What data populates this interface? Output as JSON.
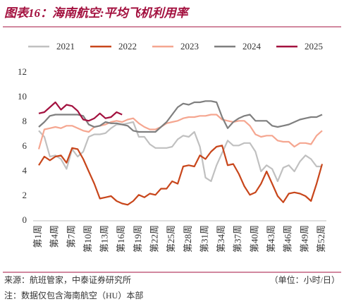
{
  "chart_data": {
    "type": "line",
    "title": "图表16：海南航空:平均飞机利用率",
    "source": "来源：航班管家，中泰证券研究所",
    "unit": "（单位：小时/日）",
    "note": "注：数据仅包含海南航空（HU）本部",
    "categories": [
      "第1周",
      null,
      null,
      "第4周",
      null,
      null,
      "第7周",
      null,
      null,
      "第10周",
      null,
      null,
      "第13周",
      null,
      null,
      "第16周",
      null,
      null,
      "第19周",
      null,
      null,
      "第22周",
      null,
      null,
      "第25周",
      null,
      null,
      "第28周",
      null,
      null,
      "第31周",
      null,
      null,
      "第34周",
      null,
      null,
      "第37周",
      null,
      null,
      "第40周",
      null,
      null,
      "第43周",
      null,
      null,
      "第46周",
      null,
      null,
      "第49周",
      null,
      null,
      "第52周"
    ],
    "ylim": [
      0,
      12
    ],
    "yticks": [
      0,
      2,
      4,
      6,
      8,
      10,
      12
    ],
    "grid": false,
    "legend": "top",
    "series": [
      {
        "name": "2021",
        "color": "#c0c0c0",
        "values": [
          7.3,
          6.8,
          5.2,
          5.3,
          5.0,
          4.2,
          5.8,
          5.2,
          5.6,
          6.8,
          7.0,
          7.0,
          7.1,
          7.5,
          7.8,
          7.8,
          7.9,
          8.0,
          6.8,
          6.8,
          6.2,
          5.9,
          5.9,
          5.9,
          6.0,
          6.6,
          6.9,
          6.8,
          7.2,
          6.0,
          3.5,
          3.2,
          4.5,
          5.5,
          6.5,
          6.1,
          6.1,
          6.3,
          6.3,
          5.6,
          4.0,
          4.5,
          4.2,
          3.2,
          4.3,
          4.5,
          4.0,
          4.8,
          5.3,
          5.0,
          4.4,
          4.4
        ]
      },
      {
        "name": "2022",
        "color": "#c8461b",
        "values": [
          4.5,
          5.2,
          4.9,
          5.2,
          5.3,
          4.7,
          5.9,
          5.8,
          5.0,
          4.0,
          3.0,
          1.8,
          1.9,
          2.0,
          1.6,
          1.4,
          1.3,
          1.6,
          2.1,
          1.9,
          2.2,
          2.1,
          2.6,
          2.6,
          3.2,
          3.0,
          4.4,
          4.5,
          4.4,
          5.3,
          5.0,
          5.6,
          6.0,
          6.1,
          4.5,
          4.6,
          3.8,
          2.8,
          2.1,
          2.3,
          3.0,
          4.0,
          3.0,
          2.0,
          1.5,
          2.2,
          2.3,
          2.2,
          2.0,
          1.6,
          3.0,
          4.6
        ]
      },
      {
        "name": "2023",
        "color": "#f5a690",
        "values": [
          5.8,
          7.4,
          7.5,
          7.6,
          7.5,
          7.7,
          7.7,
          7.5,
          7.3,
          7.2,
          7.6,
          7.7,
          7.8,
          8.0,
          8.1,
          8.0,
          8.2,
          8.3,
          7.9,
          7.6,
          7.4,
          7.4,
          7.6,
          7.9,
          8.0,
          8.1,
          8.3,
          8.4,
          8.4,
          8.5,
          8.5,
          8.6,
          8.6,
          8.2,
          8.1,
          8.0,
          8.1,
          8.1,
          7.7,
          7.0,
          6.8,
          6.9,
          6.9,
          6.5,
          6.4,
          6.4,
          6.0,
          6.3,
          6.3,
          6.2,
          6.9,
          7.3
        ]
      },
      {
        "name": "2024",
        "color": "#7f7f7f",
        "values": [
          7.6,
          8.0,
          8.5,
          8.6,
          8.6,
          8.6,
          8.6,
          8.6,
          8.5,
          7.8,
          7.6,
          7.7,
          8.0,
          7.9,
          7.9,
          7.8,
          7.7,
          7.3,
          7.2,
          7.2,
          7.2,
          7.2,
          7.6,
          8.0,
          8.6,
          9.2,
          9.5,
          9.4,
          9.6,
          9.6,
          9.7,
          9.7,
          9.6,
          8.4,
          7.5,
          8.0,
          8.3,
          8.5,
          8.6,
          8.1,
          8.1,
          8.1,
          7.7,
          7.6,
          7.7,
          7.8,
          8.0,
          8.2,
          8.3,
          8.4,
          8.4,
          8.6
        ]
      },
      {
        "name": "2025",
        "color": "#a3113f",
        "values": [
          8.7,
          8.8,
          9.2,
          9.6,
          9.0,
          9.4,
          9.3,
          8.9,
          8.2,
          8.1,
          8.3,
          8.7,
          8.3,
          8.4,
          8.8,
          8.6,
          null,
          null,
          null,
          null,
          null,
          null,
          null,
          null,
          null,
          null,
          null,
          null,
          null,
          null,
          null,
          null,
          null,
          null,
          null,
          null,
          null,
          null,
          null,
          null,
          null,
          null,
          null,
          null,
          null,
          null,
          null,
          null,
          null,
          null,
          null,
          null
        ]
      }
    ]
  }
}
